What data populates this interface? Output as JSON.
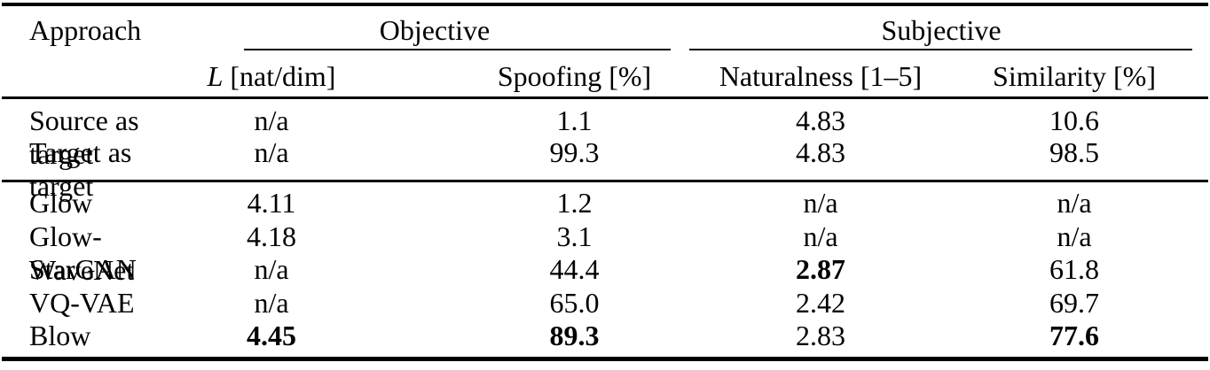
{
  "table": {
    "title_visible": false,
    "group_headers": {
      "approach_label": "Approach",
      "objective_label": "Objective",
      "subjective_label": "Subjective"
    },
    "column_headers": {
      "l_symbol": "L",
      "l_rest": " [nat/dim]",
      "spoofing": "Spoofing [%]",
      "naturalness": "Naturalness [1–5]",
      "similarity": "Similarity [%]"
    },
    "rows": [
      {
        "approach": "Source as target",
        "L": "n/a",
        "spoofing": "1.1",
        "naturalness": "4.83",
        "similarity": "10.6",
        "bold": []
      },
      {
        "approach": "Target as target",
        "L": "n/a",
        "spoofing": "99.3",
        "naturalness": "4.83",
        "similarity": "98.5",
        "bold": []
      },
      {
        "approach": "Glow",
        "L": "4.11",
        "spoofing": "1.2",
        "naturalness": "n/a",
        "similarity": "n/a",
        "bold": []
      },
      {
        "approach": "Glow-WaveNet",
        "L": "4.18",
        "spoofing": "3.1",
        "naturalness": "n/a",
        "similarity": "n/a",
        "bold": []
      },
      {
        "approach": "StarGAN",
        "L": "n/a",
        "spoofing": "44.4",
        "naturalness": "2.87",
        "similarity": "61.8",
        "bold": [
          "naturalness"
        ]
      },
      {
        "approach": "VQ-VAE",
        "L": "n/a",
        "spoofing": "65.0",
        "naturalness": "2.42",
        "similarity": "69.7",
        "bold": []
      },
      {
        "approach": "Blow",
        "L": "4.45",
        "spoofing": "89.3",
        "naturalness": "2.83",
        "similarity": "77.6",
        "bold": [
          "L",
          "spoofing",
          "similarity"
        ]
      }
    ],
    "colors": {
      "text": "#000000",
      "rules": "#000000",
      "background": "#ffffff"
    }
  }
}
